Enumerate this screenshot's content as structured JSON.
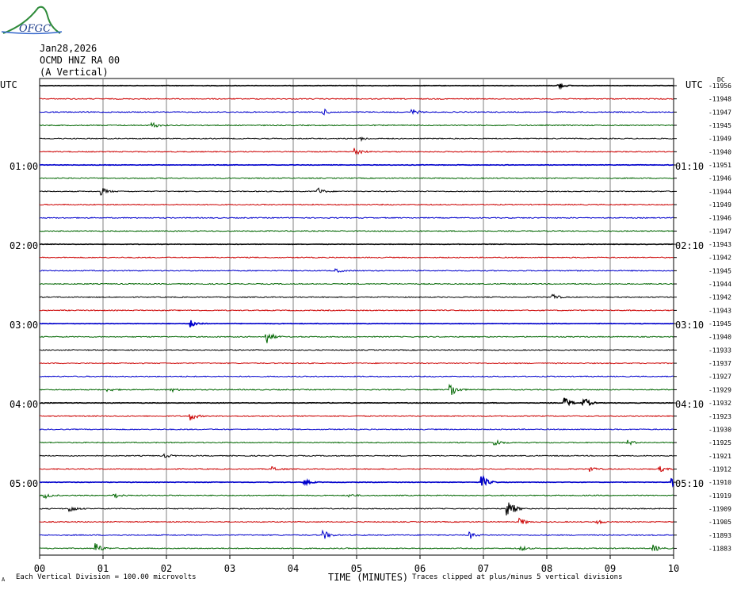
{
  "header": {
    "logo_text": "OFGC",
    "date": "Jan28,2026",
    "station": "OCMD HNZ RA 00",
    "component": "(A Vertical)"
  },
  "utc_label": "UTC",
  "left_time_labels": [
    "01:00",
    "02:00",
    "03:00",
    "04:00",
    "05:00"
  ],
  "right_time_labels": [
    "01:10",
    "02:10",
    "03:10",
    "04:10",
    "05:10"
  ],
  "right_unit": "DC",
  "footer": {
    "cut_mark": "A",
    "vertical_division": "Each Vertical Division =  100.00 microvolts",
    "clip_note": "Traces clipped at plus/minus 5 vertical divisions"
  },
  "colors": {
    "black": "#000000",
    "red": "#cc0000",
    "blue": "#0000cc",
    "green": "#006600",
    "grid": "#808080"
  },
  "chart_data": {
    "type": "line",
    "title": "",
    "xlabel": "TIME (MINUTES)",
    "ylabel": "",
    "x_ticks": [
      "00",
      "01",
      "02",
      "03",
      "04",
      "05",
      "06",
      "07",
      "08",
      "09",
      "10"
    ],
    "xlim": [
      0,
      10
    ],
    "color_cycle": [
      "black",
      "red",
      "blue",
      "green"
    ],
    "traces": [
      {
        "dc": "-11956",
        "events": [
          {
            "t": 8.2,
            "a": 3
          }
        ]
      },
      {
        "dc": "-11948",
        "events": []
      },
      {
        "dc": "-11947",
        "events": [
          {
            "t": 4.5,
            "a": 3
          },
          {
            "t": 5.9,
            "a": 3
          }
        ]
      },
      {
        "dc": "-11945",
        "events": [
          {
            "t": 1.8,
            "a": 3
          }
        ]
      },
      {
        "dc": "-11949",
        "events": [
          {
            "t": 5.1,
            "a": 2
          }
        ]
      },
      {
        "dc": "-11940",
        "events": [
          {
            "t": 5.0,
            "a": 5
          }
        ]
      },
      {
        "dc": "-11951",
        "events": []
      },
      {
        "dc": "-11946",
        "events": []
      },
      {
        "dc": "-11944",
        "events": [
          {
            "t": 1.0,
            "a": 4
          },
          {
            "t": 4.4,
            "a": 4
          }
        ]
      },
      {
        "dc": "-11949",
        "events": []
      },
      {
        "dc": "-11946",
        "events": []
      },
      {
        "dc": "-11947",
        "events": []
      },
      {
        "dc": "-11943",
        "events": []
      },
      {
        "dc": "-11942",
        "events": []
      },
      {
        "dc": "-11945",
        "events": [
          {
            "t": 4.7,
            "a": 2
          }
        ]
      },
      {
        "dc": "-11944",
        "events": []
      },
      {
        "dc": "-11942",
        "events": [
          {
            "t": 8.1,
            "a": 4
          }
        ]
      },
      {
        "dc": "-11943",
        "events": []
      },
      {
        "dc": "-11945",
        "events": [
          {
            "t": 2.4,
            "a": 5
          }
        ]
      },
      {
        "dc": "-11940",
        "events": [
          {
            "t": 3.6,
            "a": 8
          }
        ]
      },
      {
        "dc": "-11933",
        "events": []
      },
      {
        "dc": "-11937",
        "events": []
      },
      {
        "dc": "-11927",
        "events": []
      },
      {
        "dc": "-11929",
        "events": [
          {
            "t": 1.1,
            "a": 2
          },
          {
            "t": 2.1,
            "a": 2
          },
          {
            "t": 6.5,
            "a": 9
          }
        ]
      },
      {
        "dc": "-11932",
        "events": [
          {
            "t": 8.3,
            "a": 6
          },
          {
            "t": 8.6,
            "a": 6
          }
        ]
      },
      {
        "dc": "-11923",
        "events": [
          {
            "t": 2.4,
            "a": 5
          }
        ]
      },
      {
        "dc": "-11930",
        "events": []
      },
      {
        "dc": "-11925",
        "events": [
          {
            "t": 7.2,
            "a": 4
          },
          {
            "t": 9.3,
            "a": 3
          }
        ]
      },
      {
        "dc": "-11921",
        "events": [
          {
            "t": 2.0,
            "a": 2
          }
        ]
      },
      {
        "dc": "-11912",
        "events": [
          {
            "t": 3.7,
            "a": 3
          },
          {
            "t": 8.7,
            "a": 3
          },
          {
            "t": 9.8,
            "a": 3
          }
        ]
      },
      {
        "dc": "-11910",
        "events": [
          {
            "t": 4.2,
            "a": 3
          },
          {
            "t": 7.0,
            "a": 7
          },
          {
            "t": 10.0,
            "a": 4
          }
        ]
      },
      {
        "dc": "-11919",
        "events": [
          {
            "t": 0.1,
            "a": 3
          },
          {
            "t": 1.2,
            "a": 3
          },
          {
            "t": 4.9,
            "a": 2
          }
        ]
      },
      {
        "dc": "-11909",
        "events": [
          {
            "t": 0.5,
            "a": 4
          },
          {
            "t": 7.4,
            "a": 14
          }
        ]
      },
      {
        "dc": "-11905",
        "events": [
          {
            "t": 7.6,
            "a": 4
          },
          {
            "t": 8.8,
            "a": 3
          }
        ]
      },
      {
        "dc": "-11893",
        "events": [
          {
            "t": 4.5,
            "a": 5
          },
          {
            "t": 6.8,
            "a": 4
          }
        ]
      },
      {
        "dc": "-11883",
        "events": [
          {
            "t": 0.9,
            "a": 7
          },
          {
            "t": 7.6,
            "a": 3
          },
          {
            "t": 9.7,
            "a": 4
          }
        ]
      }
    ]
  }
}
